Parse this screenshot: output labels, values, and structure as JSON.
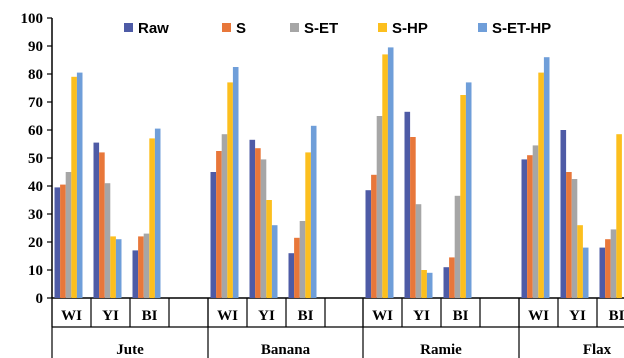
{
  "chart_data": {
    "type": "bar",
    "title": "",
    "xlabel": "",
    "ylabel": "",
    "ylim": [
      0,
      100
    ],
    "yticks": [
      0,
      10,
      20,
      30,
      40,
      50,
      60,
      70,
      80,
      90,
      100
    ],
    "grid": false,
    "legend_position": "top",
    "groups": [
      "Jute",
      "Banana",
      "Ramie",
      "Flax"
    ],
    "subcategories": [
      "WI",
      "YI",
      "BI"
    ],
    "series": [
      {
        "name": "Raw",
        "color": "#4e5ba6",
        "values": [
          39.5,
          55.5,
          17,
          45,
          56.5,
          16,
          38.5,
          66.5,
          11,
          49.5,
          60,
          18
        ]
      },
      {
        "name": "S",
        "color": "#e8773a",
        "values": [
          40.5,
          52,
          22,
          52.5,
          53.5,
          21.5,
          44,
          57.5,
          14.5,
          51,
          45,
          21
        ]
      },
      {
        "name": "S-ET",
        "color": "#a6a6a6",
        "values": [
          45,
          41,
          23,
          58.5,
          49.5,
          27.5,
          65,
          33.5,
          36.5,
          54.5,
          42.5,
          24.5
        ]
      },
      {
        "name": "S-HP",
        "color": "#fcbf1e",
        "values": [
          79,
          22,
          57,
          77,
          35,
          52,
          87,
          10,
          72.5,
          80.5,
          26,
          58.5
        ]
      },
      {
        "name": "S-ET-HP",
        "color": "#6f9ed9",
        "values": [
          80.5,
          21,
          60.5,
          82.5,
          26,
          61.5,
          89.5,
          9,
          77,
          86,
          18,
          null
        ]
      }
    ]
  }
}
